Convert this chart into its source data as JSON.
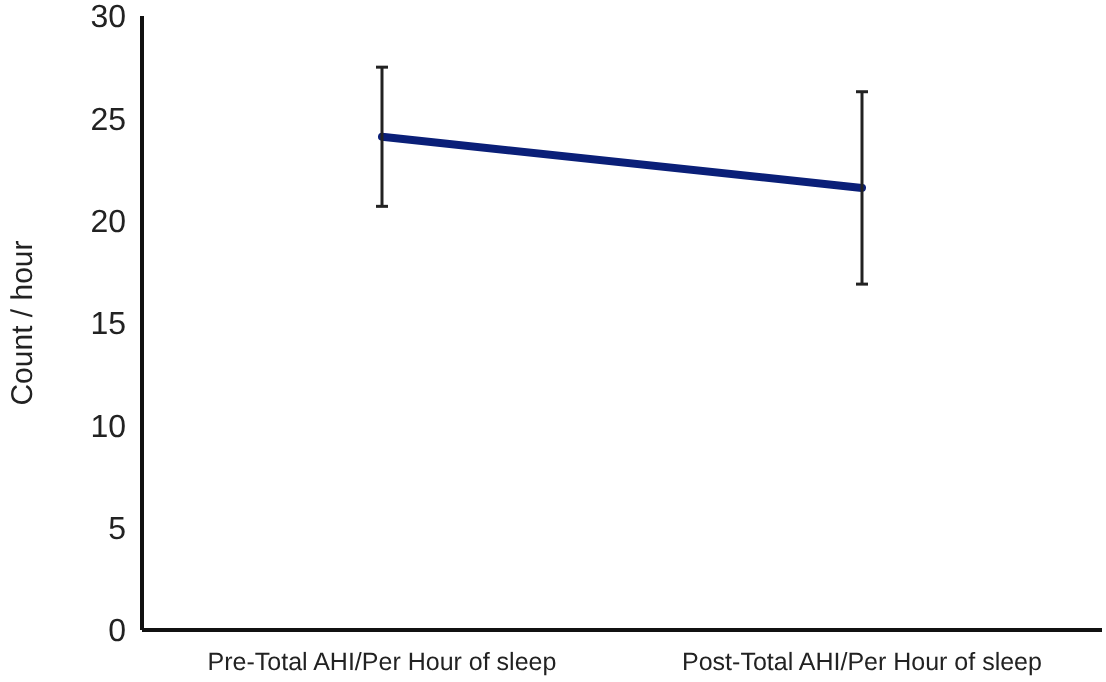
{
  "chart_data": {
    "type": "line",
    "ylabel": "Count / hour",
    "categories": [
      "Pre-Total AHI/Per Hour of sleep",
      "Post-Total AHI/Per Hour of sleep"
    ],
    "series": [
      {
        "color": "#0a1f78",
        "values": [
          24.1,
          21.6
        ],
        "errors": [
          3.4,
          4.7
        ]
      }
    ],
    "ylim": [
      0,
      30
    ],
    "yticks": [
      0,
      5,
      10,
      15,
      20,
      25,
      30
    ],
    "grid": false,
    "marker": "none",
    "line_style": "solid"
  }
}
